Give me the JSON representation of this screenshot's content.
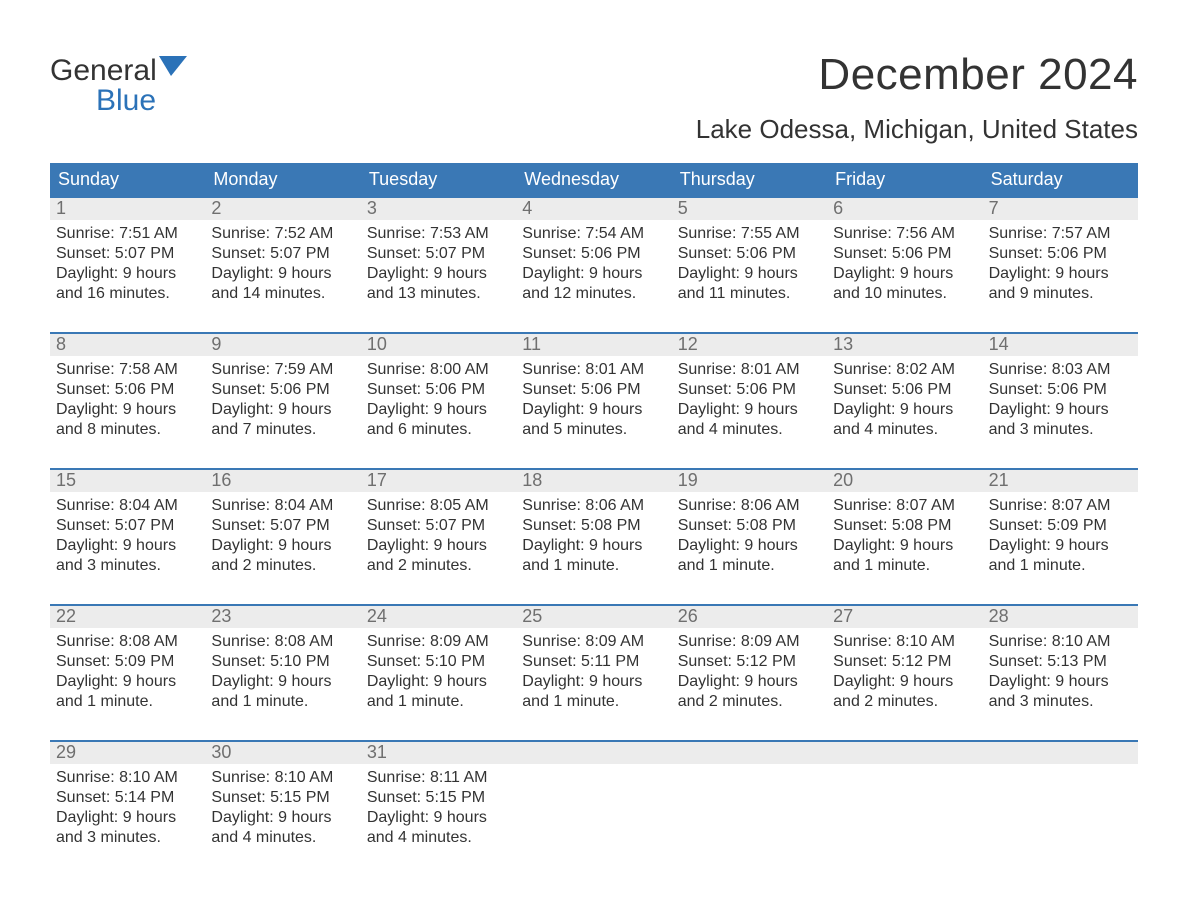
{
  "brand": {
    "top": "General",
    "bottom": "Blue",
    "icon_color": "#2b72b8"
  },
  "title": {
    "month_year": "December 2024",
    "location": "Lake Odessa, Michigan, United States"
  },
  "colors": {
    "header_bg": "#3a78b5",
    "header_text": "#ffffff",
    "row_border": "#3a78b5",
    "daynum_bg": "#ececec",
    "daynum_text": "#6f6f6f",
    "body_text": "#333333",
    "background": "#ffffff",
    "brand_blue": "#2b72b8"
  },
  "typography": {
    "month_fontsize": 44,
    "location_fontsize": 26,
    "header_fontsize": 18,
    "cell_fontsize": 16,
    "daynum_fontsize": 18,
    "logo_fontsize": 30
  },
  "day_names": [
    "Sunday",
    "Monday",
    "Tuesday",
    "Wednesday",
    "Thursday",
    "Friday",
    "Saturday"
  ],
  "weeks": [
    [
      {
        "n": "1",
        "sunrise": "7:51 AM",
        "sunset": "5:07 PM",
        "daylight": "9 hours and 16 minutes."
      },
      {
        "n": "2",
        "sunrise": "7:52 AM",
        "sunset": "5:07 PM",
        "daylight": "9 hours and 14 minutes."
      },
      {
        "n": "3",
        "sunrise": "7:53 AM",
        "sunset": "5:07 PM",
        "daylight": "9 hours and 13 minutes."
      },
      {
        "n": "4",
        "sunrise": "7:54 AM",
        "sunset": "5:06 PM",
        "daylight": "9 hours and 12 minutes."
      },
      {
        "n": "5",
        "sunrise": "7:55 AM",
        "sunset": "5:06 PM",
        "daylight": "9 hours and 11 minutes."
      },
      {
        "n": "6",
        "sunrise": "7:56 AM",
        "sunset": "5:06 PM",
        "daylight": "9 hours and 10 minutes."
      },
      {
        "n": "7",
        "sunrise": "7:57 AM",
        "sunset": "5:06 PM",
        "daylight": "9 hours and 9 minutes."
      }
    ],
    [
      {
        "n": "8",
        "sunrise": "7:58 AM",
        "sunset": "5:06 PM",
        "daylight": "9 hours and 8 minutes."
      },
      {
        "n": "9",
        "sunrise": "7:59 AM",
        "sunset": "5:06 PM",
        "daylight": "9 hours and 7 minutes."
      },
      {
        "n": "10",
        "sunrise": "8:00 AM",
        "sunset": "5:06 PM",
        "daylight": "9 hours and 6 minutes."
      },
      {
        "n": "11",
        "sunrise": "8:01 AM",
        "sunset": "5:06 PM",
        "daylight": "9 hours and 5 minutes."
      },
      {
        "n": "12",
        "sunrise": "8:01 AM",
        "sunset": "5:06 PM",
        "daylight": "9 hours and 4 minutes."
      },
      {
        "n": "13",
        "sunrise": "8:02 AM",
        "sunset": "5:06 PM",
        "daylight": "9 hours and 4 minutes."
      },
      {
        "n": "14",
        "sunrise": "8:03 AM",
        "sunset": "5:06 PM",
        "daylight": "9 hours and 3 minutes."
      }
    ],
    [
      {
        "n": "15",
        "sunrise": "8:04 AM",
        "sunset": "5:07 PM",
        "daylight": "9 hours and 3 minutes."
      },
      {
        "n": "16",
        "sunrise": "8:04 AM",
        "sunset": "5:07 PM",
        "daylight": "9 hours and 2 minutes."
      },
      {
        "n": "17",
        "sunrise": "8:05 AM",
        "sunset": "5:07 PM",
        "daylight": "9 hours and 2 minutes."
      },
      {
        "n": "18",
        "sunrise": "8:06 AM",
        "sunset": "5:08 PM",
        "daylight": "9 hours and 1 minute."
      },
      {
        "n": "19",
        "sunrise": "8:06 AM",
        "sunset": "5:08 PM",
        "daylight": "9 hours and 1 minute."
      },
      {
        "n": "20",
        "sunrise": "8:07 AM",
        "sunset": "5:08 PM",
        "daylight": "9 hours and 1 minute."
      },
      {
        "n": "21",
        "sunrise": "8:07 AM",
        "sunset": "5:09 PM",
        "daylight": "9 hours and 1 minute."
      }
    ],
    [
      {
        "n": "22",
        "sunrise": "8:08 AM",
        "sunset": "5:09 PM",
        "daylight": "9 hours and 1 minute."
      },
      {
        "n": "23",
        "sunrise": "8:08 AM",
        "sunset": "5:10 PM",
        "daylight": "9 hours and 1 minute."
      },
      {
        "n": "24",
        "sunrise": "8:09 AM",
        "sunset": "5:10 PM",
        "daylight": "9 hours and 1 minute."
      },
      {
        "n": "25",
        "sunrise": "8:09 AM",
        "sunset": "5:11 PM",
        "daylight": "9 hours and 1 minute."
      },
      {
        "n": "26",
        "sunrise": "8:09 AM",
        "sunset": "5:12 PM",
        "daylight": "9 hours and 2 minutes."
      },
      {
        "n": "27",
        "sunrise": "8:10 AM",
        "sunset": "5:12 PM",
        "daylight": "9 hours and 2 minutes."
      },
      {
        "n": "28",
        "sunrise": "8:10 AM",
        "sunset": "5:13 PM",
        "daylight": "9 hours and 3 minutes."
      }
    ],
    [
      {
        "n": "29",
        "sunrise": "8:10 AM",
        "sunset": "5:14 PM",
        "daylight": "9 hours and 3 minutes."
      },
      {
        "n": "30",
        "sunrise": "8:10 AM",
        "sunset": "5:15 PM",
        "daylight": "9 hours and 4 minutes."
      },
      {
        "n": "31",
        "sunrise": "8:11 AM",
        "sunset": "5:15 PM",
        "daylight": "9 hours and 4 minutes."
      },
      null,
      null,
      null,
      null
    ]
  ],
  "labels": {
    "sunrise": "Sunrise:",
    "sunset": "Sunset:",
    "daylight": "Daylight:"
  }
}
